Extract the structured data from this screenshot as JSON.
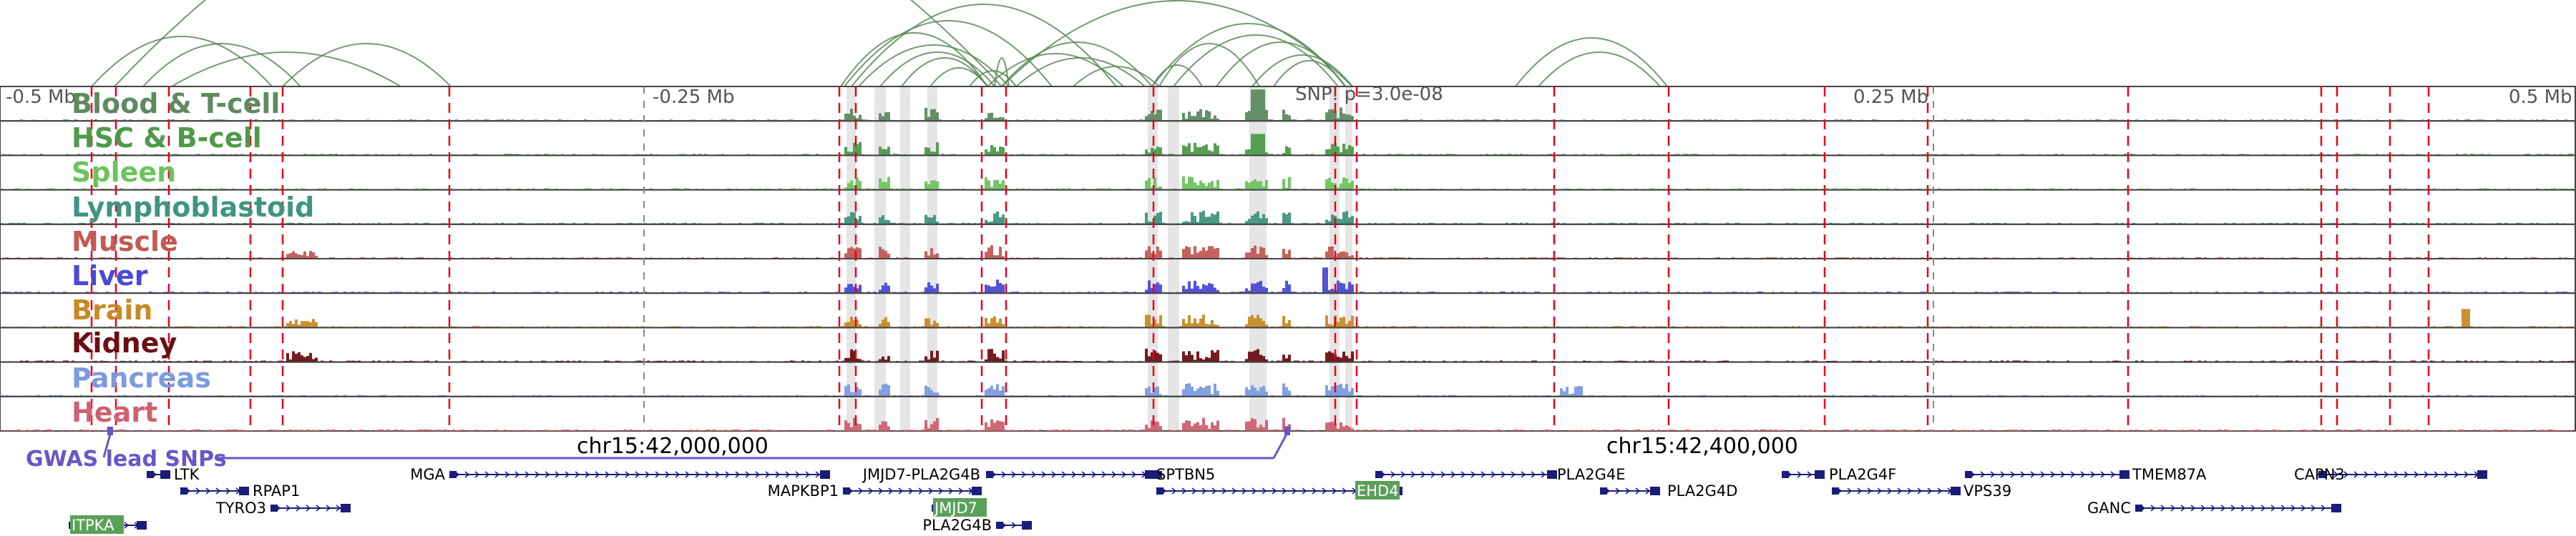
{
  "axis": {
    "labels": [
      "-0.5 Mb",
      "-0.25 Mb",
      "0.25 Mb",
      "0.5 Mb"
    ],
    "coords": [
      "chr15:42,000,000",
      "chr15:42,400,000"
    ],
    "snp_label": "SNP: p=3.0e-08"
  },
  "gwas_label": "GWAS lead SNPs",
  "tracks": [
    {
      "name": "Blood & T-cell",
      "color": "#5e8a60"
    },
    {
      "name": "HSC & B-cell",
      "color": "#4e9a4a"
    },
    {
      "name": "Spleen",
      "color": "#6cc45c"
    },
    {
      "name": "Lymphoblastoid",
      "color": "#409580"
    },
    {
      "name": "Muscle",
      "color": "#c25a55"
    },
    {
      "name": "Liver",
      "color": "#4a4ad8"
    },
    {
      "name": "Brain",
      "color": "#c88a25"
    },
    {
      "name": "Kidney",
      "color": "#6a0f14"
    },
    {
      "name": "Pancreas",
      "color": "#7b9be0"
    },
    {
      "name": "Heart",
      "color": "#d06070"
    }
  ],
  "genes": [
    {
      "name": "LTK",
      "highlight": false
    },
    {
      "name": "RPAP1",
      "highlight": false
    },
    {
      "name": "TYRO3",
      "highlight": false
    },
    {
      "name": "ITPKA",
      "highlight": true
    },
    {
      "name": "MGA",
      "highlight": false
    },
    {
      "name": "MAPKBP1",
      "highlight": false
    },
    {
      "name": "JMJD7-PLA2G4B",
      "highlight": false
    },
    {
      "name": "JMJD7",
      "highlight": true
    },
    {
      "name": "PLA2G4B",
      "highlight": false
    },
    {
      "name": "SPTBN5",
      "highlight": false
    },
    {
      "name": "EHD4",
      "highlight": true
    },
    {
      "name": "PLA2G4E",
      "highlight": false
    },
    {
      "name": "PLA2G4D",
      "highlight": false
    },
    {
      "name": "PLA2G4F",
      "highlight": false
    },
    {
      "name": "VPS39",
      "highlight": false
    },
    {
      "name": "TMEM87A",
      "highlight": false
    },
    {
      "name": "GANC",
      "highlight": false
    },
    {
      "name": "CAPN3",
      "highlight": false
    }
  ],
  "colors": {
    "arc": "#5a8a58",
    "enhancer_line": "#e8001c",
    "highlight_band": "#d0d0d0",
    "gene_body": "#1c1c7a",
    "gene_highlight_bg": "#5aa05a",
    "gwas": "#6a55c8"
  }
}
